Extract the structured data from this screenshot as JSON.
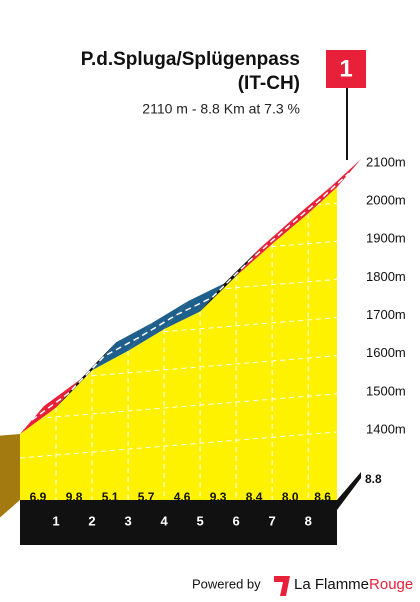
{
  "chart_data": {
    "type": "profile",
    "title": "P.d.Spluga/Splügenpass",
    "subtitle_region": "(IT-CH)",
    "subtitle": "2110 m - 8.8 Km at 7.3 %",
    "flag_label": "1",
    "x": [
      0,
      1,
      2,
      3,
      4,
      5,
      6,
      7,
      8,
      8.8
    ],
    "values": [
      1463,
      1532,
      1630,
      1681,
      1738,
      1784,
      1877,
      1961,
      2041,
      2110
    ],
    "gradients": [
      6.9,
      9.8,
      5.1,
      5.7,
      4.6,
      9.3,
      8.4,
      8.0,
      8.6
    ],
    "gradient_labels": [
      "6.9",
      "9.8",
      "5.1",
      "5.7",
      "4.6",
      "9.3",
      "8.4",
      "8.0",
      "8.6"
    ],
    "segment_colors": [
      "#e8203a",
      "#111111",
      "#1f5f8b",
      "#1f5f8b",
      "#1f5f8b",
      "#111111",
      "#e8203a",
      "#e8203a",
      "#e8203a"
    ],
    "fill_color": "#fef200",
    "xlim": [
      0,
      8.8
    ],
    "xticks": [
      1,
      2,
      3,
      4,
      5,
      6,
      7,
      8
    ],
    "ylim": [
      1400,
      2100
    ],
    "yticks": [
      {
        "value": 1400,
        "label": "1400m"
      },
      {
        "value": 1500,
        "label": "1500m"
      },
      {
        "value": 1600,
        "label": "1600m"
      },
      {
        "value": 1700,
        "label": "1700m"
      },
      {
        "value": 1800,
        "label": "1800m"
      },
      {
        "value": 1900,
        "label": "1900m"
      },
      {
        "value": 2000,
        "label": "2000m"
      },
      {
        "value": 2100,
        "label": "2100m"
      }
    ],
    "grid": true,
    "footer": {
      "powered": "Powered by",
      "brand_a": "La Flamme",
      "brand_b": "Rouge"
    }
  }
}
